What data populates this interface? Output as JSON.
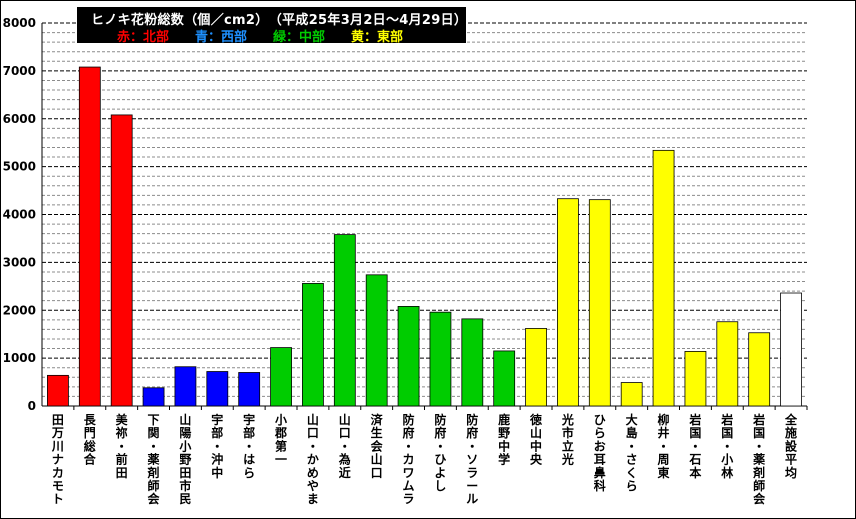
{
  "title": {
    "line1": "ヒノキ花粉総数（個／cm2）　（平成25年3月2日～4月29日）",
    "legend": [
      {
        "text": "赤：北部",
        "color": "#ff0000"
      },
      {
        "text": "青：西部",
        "color": "#1e90ff"
      },
      {
        "text": "緑：中部",
        "color": "#00cc00"
      },
      {
        "text": "黄：東部",
        "color": "#ffff00"
      }
    ]
  },
  "chart_data": {
    "type": "bar",
    "ylim": [
      0,
      8000
    ],
    "yticks": [
      0,
      1000,
      2000,
      3000,
      4000,
      5000,
      6000,
      7000,
      8000
    ],
    "grid": true,
    "categories": [
      "田万川ナカモト",
      "長門総合",
      "美祢・前田",
      "下関・薬剤師会",
      "山陽小野田市民",
      "宇部・沖中",
      "宇部・はら",
      "小郡第一",
      "山口・かめやま",
      "山口・為近",
      "済生会山口",
      "防府・カワムラ",
      "防府・ひよし",
      "防府・ソラール",
      "鹿野中学",
      "徳山中央",
      "光市立光",
      "ひらお耳鼻科",
      "大島・さくら",
      "柳井・周東",
      "岩国・石本",
      "岩国・小林",
      "岩国・薬剤師会",
      "全施設平均"
    ],
    "values": [
      640,
      7080,
      6080,
      380,
      820,
      720,
      700,
      1220,
      2560,
      3580,
      2740,
      2080,
      1960,
      1820,
      1150,
      1620,
      4330,
      4310,
      490,
      5340,
      1140,
      1760,
      1530,
      2360
    ],
    "colors": [
      "#ff0000",
      "#ff0000",
      "#ff0000",
      "#0000ff",
      "#0000ff",
      "#0000ff",
      "#0000ff",
      "#00cc00",
      "#00cc00",
      "#00cc00",
      "#00cc00",
      "#00cc00",
      "#00cc00",
      "#00cc00",
      "#00cc00",
      "#ffff00",
      "#ffff00",
      "#ffff00",
      "#ffff00",
      "#ffff00",
      "#ffff00",
      "#ffff00",
      "#ffff00",
      "#ffffff"
    ]
  }
}
